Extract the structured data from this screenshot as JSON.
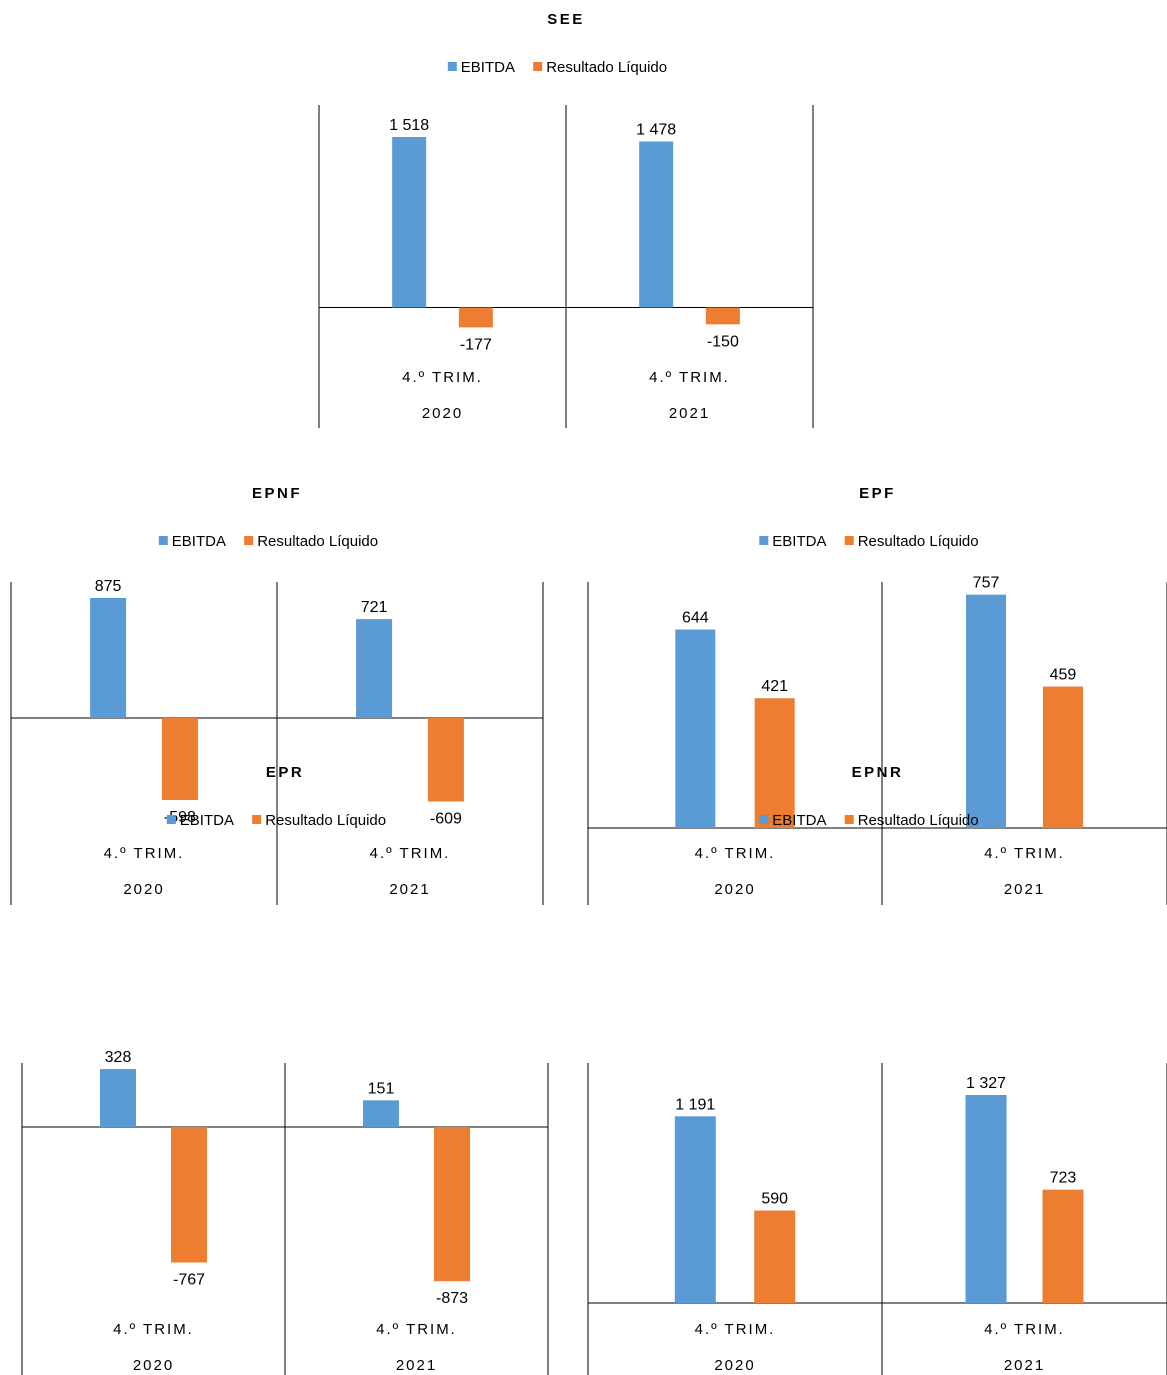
{
  "colors": {
    "ebitda": "#5B9BD5",
    "resultado": "#ED7D31",
    "axis": "#000000",
    "text": "#000000"
  },
  "chart_data": [
    {
      "type": "bar",
      "title": "SEE",
      "categories": [
        [
          "4.º TRIM.",
          "2020"
        ],
        [
          "4.º TRIM.",
          "2021"
        ]
      ],
      "series": [
        {
          "name": "EBITDA",
          "values": [
            1518,
            1478
          ]
        },
        {
          "name": "Resultado Líquido",
          "values": [
            -177,
            -150
          ]
        }
      ],
      "data_labels": [
        [
          "1 518",
          "1 478"
        ],
        [
          "-177",
          "-150"
        ]
      ],
      "legend": "top-center",
      "grid": false
    },
    {
      "type": "bar",
      "title": "EPNF",
      "categories": [
        [
          "4.º TRIM.",
          "2020"
        ],
        [
          "4.º TRIM.",
          "2021"
        ]
      ],
      "series": [
        {
          "name": "EBITDA",
          "values": [
            875,
            721
          ]
        },
        {
          "name": "Resultado Líquido",
          "values": [
            -598,
            -609
          ]
        }
      ],
      "data_labels": [
        [
          "875",
          "721"
        ],
        [
          "-598",
          "-609"
        ]
      ],
      "legend": "top-center",
      "grid": false
    },
    {
      "type": "bar",
      "title": "EPF",
      "categories": [
        [
          "4.º TRIM.",
          "2020"
        ],
        [
          "4.º TRIM.",
          "2021"
        ]
      ],
      "series": [
        {
          "name": "EBITDA",
          "values": [
            644,
            757
          ]
        },
        {
          "name": "Resultado Líquido",
          "values": [
            421,
            459
          ]
        }
      ],
      "data_labels": [
        [
          "644",
          "757"
        ],
        [
          "421",
          "459"
        ]
      ],
      "legend": "top-center",
      "grid": false
    },
    {
      "type": "bar",
      "title": "EPR",
      "categories": [
        [
          "4.º TRIM.",
          "2020"
        ],
        [
          "4.º TRIM.",
          "2021"
        ]
      ],
      "series": [
        {
          "name": "EBITDA",
          "values": [
            328,
            151
          ]
        },
        {
          "name": "Resultado Líquido",
          "values": [
            -767,
            -873
          ]
        }
      ],
      "data_labels": [
        [
          "328",
          "151"
        ],
        [
          "-767",
          "-873"
        ]
      ],
      "legend": "top-center",
      "grid": false
    },
    {
      "type": "bar",
      "title": "EPNR",
      "categories": [
        [
          "4.º TRIM.",
          "2020"
        ],
        [
          "4.º TRIM.",
          "2021"
        ]
      ],
      "series": [
        {
          "name": "EBITDA",
          "values": [
            1191,
            1327
          ]
        },
        {
          "name": "Resultado Líquido",
          "values": [
            590,
            723
          ]
        }
      ],
      "data_labels": [
        [
          "1 191",
          "1 327"
        ],
        [
          "590",
          "723"
        ]
      ],
      "legend": "top-center",
      "grid": false
    }
  ]
}
